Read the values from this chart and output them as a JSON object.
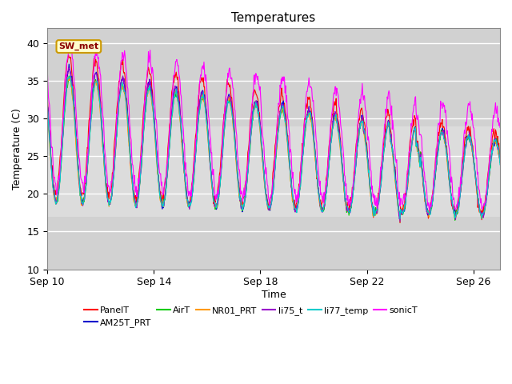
{
  "title": "Temperatures",
  "xlabel": "Time",
  "ylabel": "Temperature (C)",
  "ylim": [
    10,
    42
  ],
  "yticks": [
    10,
    15,
    20,
    25,
    30,
    35,
    40
  ],
  "xlim_days": [
    0,
    17
  ],
  "xtick_positions": [
    0,
    4,
    8,
    12,
    16
  ],
  "xtick_labels": [
    "Sep 10",
    "Sep 14",
    "Sep 18",
    "Sep 22",
    "Sep 26"
  ],
  "series_order": [
    "PanelT",
    "AM25T_PRT",
    "AirT",
    "NR01_PRT",
    "li75_t",
    "li77_temp",
    "sonicT"
  ],
  "series": {
    "PanelT": {
      "color": "#ff0000",
      "lw": 0.8
    },
    "AM25T_PRT": {
      "color": "#0000cc",
      "lw": 0.8
    },
    "AirT": {
      "color": "#00cc00",
      "lw": 0.8
    },
    "NR01_PRT": {
      "color": "#ff9900",
      "lw": 0.8
    },
    "li75_t": {
      "color": "#9900cc",
      "lw": 0.8
    },
    "li77_temp": {
      "color": "#00cccc",
      "lw": 0.8
    },
    "sonicT": {
      "color": "#ff00ff",
      "lw": 0.8
    }
  },
  "annotation_text": "SW_met",
  "plot_bg_color": "#dcdcdc",
  "fig_bg_color": "#ffffff",
  "band1_ymin": 29,
  "band1_ymax": 42,
  "band2_ymin": 10,
  "band2_ymax": 17
}
